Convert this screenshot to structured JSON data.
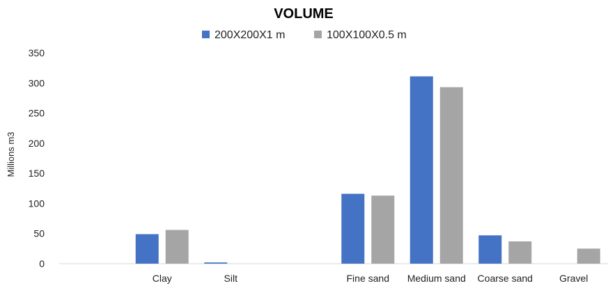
{
  "chart_data": {
    "type": "bar",
    "title": "VOLUME",
    "ylabel": "Millions m3",
    "xlabel": "",
    "categories": [
      "",
      "Clay",
      "Silt",
      "",
      "Fine sand",
      "Medium sand",
      "Coarse sand",
      "Gravel"
    ],
    "series": [
      {
        "name": "200X200X1 m",
        "color": "#4472C4",
        "values": [
          null,
          49,
          2,
          null,
          116,
          311,
          47,
          null
        ]
      },
      {
        "name": "100X100X0.5 m",
        "color": "#A5A5A5",
        "values": [
          null,
          56,
          null,
          null,
          113,
          293,
          37,
          25
        ]
      }
    ],
    "ylim": [
      0,
      350
    ],
    "yticks": [
      0,
      50,
      100,
      150,
      200,
      250,
      300,
      350
    ],
    "grid": false,
    "legend": "top-center"
  }
}
